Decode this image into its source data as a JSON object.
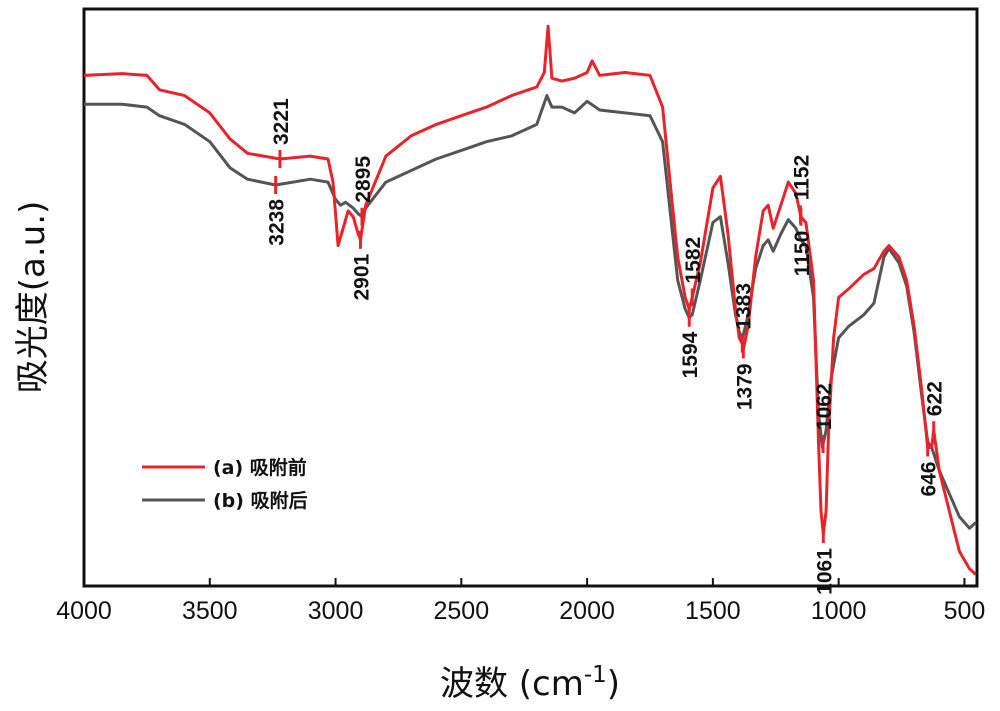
{
  "chart_data": {
    "type": "line",
    "xlabel": "波数",
    "xlabel_unit_base": "(cm",
    "xlabel_unit_sup": "-1",
    "xlabel_unit_close": ")",
    "ylabel": "吸光度(a.u.)",
    "xlim": [
      4000,
      450
    ],
    "ylim": [
      0,
      1
    ],
    "x_reversed": true,
    "y_tick_labels": false,
    "grid": false,
    "legend_position": "lower-left",
    "x_ticks": [
      {
        "value": 4000,
        "label": "4000"
      },
      {
        "value": 3500,
        "label": "3500"
      },
      {
        "value": 3000,
        "label": "3000"
      },
      {
        "value": 2500,
        "label": "2500"
      },
      {
        "value": 2000,
        "label": "2000"
      },
      {
        "value": 1500,
        "label": "1500"
      },
      {
        "value": 1000,
        "label": "1000"
      },
      {
        "value": 500,
        "label": "500"
      }
    ],
    "series": [
      {
        "name": "(a) 吸附前",
        "color": "#e8242a",
        "points": [
          [
            4000,
            0.885
          ],
          [
            3850,
            0.888
          ],
          [
            3750,
            0.885
          ],
          [
            3700,
            0.86
          ],
          [
            3600,
            0.85
          ],
          [
            3500,
            0.82
          ],
          [
            3420,
            0.775
          ],
          [
            3350,
            0.75
          ],
          [
            3221,
            0.74
          ],
          [
            3100,
            0.745
          ],
          [
            3030,
            0.74
          ],
          [
            3010,
            0.7
          ],
          [
            2990,
            0.59
          ],
          [
            2970,
            0.62
          ],
          [
            2950,
            0.65
          ],
          [
            2930,
            0.64
          ],
          [
            2910,
            0.61
          ],
          [
            2901,
            0.6
          ],
          [
            2880,
            0.66
          ],
          [
            2800,
            0.745
          ],
          [
            2700,
            0.78
          ],
          [
            2600,
            0.8
          ],
          [
            2500,
            0.815
          ],
          [
            2400,
            0.83
          ],
          [
            2300,
            0.85
          ],
          [
            2200,
            0.865
          ],
          [
            2170,
            0.89
          ],
          [
            2155,
            0.97
          ],
          [
            2140,
            0.88
          ],
          [
            2100,
            0.875
          ],
          [
            2050,
            0.88
          ],
          [
            2000,
            0.89
          ],
          [
            1980,
            0.91
          ],
          [
            1950,
            0.885
          ],
          [
            1850,
            0.89
          ],
          [
            1750,
            0.885
          ],
          [
            1700,
            0.83
          ],
          [
            1670,
            0.7
          ],
          [
            1640,
            0.57
          ],
          [
            1610,
            0.5
          ],
          [
            1594,
            0.48
          ],
          [
            1582,
            0.5
          ],
          [
            1550,
            0.56
          ],
          [
            1500,
            0.69
          ],
          [
            1470,
            0.71
          ],
          [
            1440,
            0.61
          ],
          [
            1410,
            0.48
          ],
          [
            1395,
            0.43
          ],
          [
            1383,
            0.42
          ],
          [
            1379,
            0.41
          ],
          [
            1360,
            0.45
          ],
          [
            1330,
            0.57
          ],
          [
            1300,
            0.65
          ],
          [
            1280,
            0.66
          ],
          [
            1260,
            0.62
          ],
          [
            1230,
            0.66
          ],
          [
            1200,
            0.7
          ],
          [
            1170,
            0.68
          ],
          [
            1150,
            0.64
          ],
          [
            1130,
            0.63
          ],
          [
            1100,
            0.53
          ],
          [
            1080,
            0.25
          ],
          [
            1070,
            0.13
          ],
          [
            1061,
            0.09
          ],
          [
            1050,
            0.13
          ],
          [
            1040,
            0.27
          ],
          [
            1020,
            0.43
          ],
          [
            1000,
            0.5
          ],
          [
            960,
            0.515
          ],
          [
            900,
            0.54
          ],
          [
            860,
            0.55
          ],
          [
            820,
            0.58
          ],
          [
            800,
            0.59
          ],
          [
            760,
            0.57
          ],
          [
            730,
            0.53
          ],
          [
            700,
            0.45
          ],
          [
            670,
            0.34
          ],
          [
            646,
            0.24
          ],
          [
            630,
            0.24
          ],
          [
            622,
            0.27
          ],
          [
            600,
            0.2
          ],
          [
            560,
            0.13
          ],
          [
            520,
            0.06
          ],
          [
            480,
            0.03
          ],
          [
            455,
            0.02
          ]
        ]
      },
      {
        "name": "(b) 吸附后",
        "color": "#555555",
        "points": [
          [
            4000,
            0.835
          ],
          [
            3850,
            0.835
          ],
          [
            3750,
            0.83
          ],
          [
            3700,
            0.815
          ],
          [
            3600,
            0.8
          ],
          [
            3500,
            0.77
          ],
          [
            3420,
            0.725
          ],
          [
            3350,
            0.705
          ],
          [
            3238,
            0.695
          ],
          [
            3100,
            0.705
          ],
          [
            3030,
            0.7
          ],
          [
            3000,
            0.67
          ],
          [
            2980,
            0.66
          ],
          [
            2960,
            0.665
          ],
          [
            2930,
            0.655
          ],
          [
            2910,
            0.645
          ],
          [
            2895,
            0.64
          ],
          [
            2880,
            0.655
          ],
          [
            2800,
            0.7
          ],
          [
            2700,
            0.72
          ],
          [
            2600,
            0.74
          ],
          [
            2500,
            0.755
          ],
          [
            2400,
            0.77
          ],
          [
            2300,
            0.78
          ],
          [
            2200,
            0.8
          ],
          [
            2160,
            0.85
          ],
          [
            2140,
            0.83
          ],
          [
            2100,
            0.83
          ],
          [
            2050,
            0.82
          ],
          [
            2000,
            0.84
          ],
          [
            1950,
            0.825
          ],
          [
            1850,
            0.82
          ],
          [
            1750,
            0.815
          ],
          [
            1700,
            0.77
          ],
          [
            1670,
            0.65
          ],
          [
            1640,
            0.53
          ],
          [
            1610,
            0.48
          ],
          [
            1594,
            0.465
          ],
          [
            1582,
            0.47
          ],
          [
            1550,
            0.53
          ],
          [
            1500,
            0.63
          ],
          [
            1470,
            0.64
          ],
          [
            1440,
            0.56
          ],
          [
            1410,
            0.47
          ],
          [
            1395,
            0.44
          ],
          [
            1383,
            0.43
          ],
          [
            1379,
            0.435
          ],
          [
            1360,
            0.47
          ],
          [
            1330,
            0.55
          ],
          [
            1300,
            0.59
          ],
          [
            1280,
            0.6
          ],
          [
            1260,
            0.58
          ],
          [
            1230,
            0.61
          ],
          [
            1200,
            0.635
          ],
          [
            1170,
            0.62
          ],
          [
            1150,
            0.6
          ],
          [
            1130,
            0.59
          ],
          [
            1100,
            0.5
          ],
          [
            1080,
            0.3
          ],
          [
            1065,
            0.24
          ],
          [
            1050,
            0.27
          ],
          [
            1030,
            0.36
          ],
          [
            1000,
            0.43
          ],
          [
            960,
            0.45
          ],
          [
            900,
            0.47
          ],
          [
            860,
            0.49
          ],
          [
            820,
            0.57
          ],
          [
            800,
            0.585
          ],
          [
            760,
            0.56
          ],
          [
            730,
            0.52
          ],
          [
            700,
            0.44
          ],
          [
            670,
            0.33
          ],
          [
            646,
            0.25
          ],
          [
            630,
            0.24
          ],
          [
            600,
            0.2
          ],
          [
            560,
            0.16
          ],
          [
            520,
            0.12
          ],
          [
            480,
            0.1
          ],
          [
            455,
            0.11
          ]
        ]
      }
    ],
    "annotations": [
      {
        "label": "3221",
        "x": 3221,
        "series": 0,
        "side": "above"
      },
      {
        "label": "3238",
        "x": 3238,
        "series": 1,
        "side": "below"
      },
      {
        "label": "2895",
        "x": 2895,
        "series": 1,
        "side": "above"
      },
      {
        "label": "2901",
        "x": 2901,
        "series": 0,
        "side": "below"
      },
      {
        "label": "1582",
        "x": 1582,
        "series": 0,
        "side": "above"
      },
      {
        "label": "1594",
        "x": 1594,
        "series": 1,
        "side": "below"
      },
      {
        "label": "1383",
        "x": 1383,
        "series": 0,
        "side": "above"
      },
      {
        "label": "1379",
        "x": 1379,
        "series": 0,
        "side": "below"
      },
      {
        "label": "1152",
        "x": 1152,
        "series": 0,
        "side": "above"
      },
      {
        "label": "1150",
        "x": 1150,
        "series": 0,
        "side": "below"
      },
      {
        "label": "1062",
        "x": 1062,
        "series": 1,
        "side": "above"
      },
      {
        "label": "1061",
        "x": 1061,
        "series": 0,
        "side": "below"
      },
      {
        "label": "622",
        "x": 622,
        "series": 0,
        "side": "above"
      },
      {
        "label": "646",
        "x": 646,
        "series": 0,
        "side": "below"
      }
    ]
  }
}
